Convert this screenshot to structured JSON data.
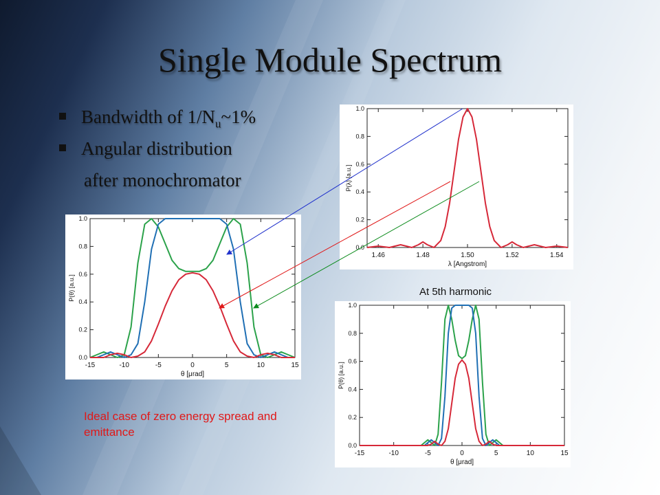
{
  "slide": {
    "title": "Single Module Spectrum",
    "bullets": [
      {
        "main": "Bandwidth of 1/N",
        "sub": "u",
        "tail": "~1%"
      },
      {
        "main": "Angular distribution"
      }
    ],
    "continuation": "after monochromator",
    "caption_harmonic": "At 5th harmonic",
    "note": "Ideal case of zero energy spread and emittance",
    "arrow_colors": {
      "blue": "#2233cc",
      "red": "#e01818",
      "green": "#0a8a1a"
    }
  },
  "chart_data": [
    {
      "id": "angular",
      "type": "line",
      "ylabel": "P(θ) [a.u.]",
      "xlabel": "θ [μrad]",
      "xlim": [
        -15,
        15
      ],
      "ylim": [
        0,
        1.0
      ],
      "xticks": [
        -15,
        -10,
        -5,
        0,
        5,
        10,
        15
      ],
      "yticks": [
        0.0,
        0.2,
        0.4,
        0.6,
        0.8,
        1.0
      ],
      "grid": false,
      "series": [
        {
          "color": "#2ba24a",
          "x": [
            -15,
            -14,
            -13,
            -12,
            -11,
            -10,
            -9,
            -8,
            -7,
            -6,
            -5,
            -4,
            -3,
            -2,
            -1,
            0,
            1,
            2,
            3,
            4,
            5,
            6,
            7,
            8,
            9,
            10,
            11,
            12,
            13,
            14,
            15
          ],
          "y": [
            0.0,
            0.02,
            0.04,
            0.02,
            0.0,
            0.02,
            0.22,
            0.68,
            0.96,
            1.0,
            0.94,
            0.82,
            0.7,
            0.64,
            0.62,
            0.62,
            0.62,
            0.64,
            0.7,
            0.82,
            0.94,
            1.0,
            0.96,
            0.68,
            0.22,
            0.02,
            0.0,
            0.02,
            0.04,
            0.02,
            0.0
          ]
        },
        {
          "color": "#1f6fb4",
          "x": [
            -15,
            -14,
            -13,
            -12,
            -11,
            -10,
            -9,
            -8,
            -7,
            -6,
            -5,
            -4,
            -3,
            -2,
            -1,
            0,
            1,
            2,
            3,
            4,
            5,
            6,
            7,
            8,
            9,
            10,
            11,
            12,
            13,
            14,
            15
          ],
          "y": [
            0.0,
            0.0,
            0.02,
            0.04,
            0.02,
            0.0,
            0.02,
            0.1,
            0.4,
            0.78,
            0.96,
            1.0,
            1.0,
            1.0,
            1.0,
            1.0,
            1.0,
            1.0,
            1.0,
            1.0,
            0.96,
            0.78,
            0.4,
            0.1,
            0.02,
            0.0,
            0.02,
            0.04,
            0.02,
            0.0,
            0.0
          ]
        },
        {
          "color": "#d62838",
          "x": [
            -15,
            -14,
            -13,
            -12,
            -11,
            -10,
            -9,
            -8,
            -7,
            -6,
            -5,
            -4,
            -3,
            -2,
            -1,
            0,
            1,
            2,
            3,
            4,
            5,
            6,
            7,
            8,
            9,
            10,
            11,
            12,
            13,
            14,
            15
          ],
          "y": [
            0.0,
            0.0,
            0.0,
            0.02,
            0.03,
            0.02,
            0.0,
            0.01,
            0.04,
            0.12,
            0.24,
            0.37,
            0.48,
            0.56,
            0.6,
            0.61,
            0.6,
            0.56,
            0.48,
            0.37,
            0.24,
            0.12,
            0.04,
            0.01,
            0.0,
            0.02,
            0.03,
            0.02,
            0.0,
            0.0,
            0.0
          ]
        }
      ]
    },
    {
      "id": "spectrum",
      "type": "line",
      "ylabel": "P(λ) [a.u.]",
      "xlabel": "λ [Angstrom]",
      "xlim": [
        1.455,
        1.545
      ],
      "ylim": [
        0,
        1.0
      ],
      "xticks": [
        1.46,
        1.48,
        1.5,
        1.52,
        1.54
      ],
      "yticks": [
        0.0,
        0.2,
        0.4,
        0.6,
        0.8,
        1.0
      ],
      "grid": false,
      "series": [
        {
          "color": "#d62838",
          "x": [
            1.455,
            1.46,
            1.465,
            1.47,
            1.475,
            1.478,
            1.48,
            1.482,
            1.485,
            1.488,
            1.49,
            1.492,
            1.494,
            1.496,
            1.498,
            1.5,
            1.502,
            1.504,
            1.506,
            1.508,
            1.51,
            1.512,
            1.515,
            1.518,
            1.52,
            1.522,
            1.525,
            1.53,
            1.535,
            1.54,
            1.545
          ],
          "y": [
            0.0,
            0.01,
            0.0,
            0.02,
            0.0,
            0.02,
            0.04,
            0.02,
            0.0,
            0.05,
            0.15,
            0.32,
            0.55,
            0.78,
            0.94,
            1.0,
            0.94,
            0.78,
            0.55,
            0.32,
            0.15,
            0.05,
            0.0,
            0.02,
            0.04,
            0.02,
            0.0,
            0.02,
            0.0,
            0.01,
            0.0
          ]
        }
      ]
    },
    {
      "id": "harmonic5",
      "type": "line",
      "ylabel": "P(θ) [a.u.]",
      "xlabel": "θ [μrad]",
      "xlim": [
        -15,
        15
      ],
      "ylim": [
        0,
        1.0
      ],
      "xticks": [
        -15,
        -10,
        -5,
        0,
        5,
        10,
        15
      ],
      "yticks": [
        0.0,
        0.2,
        0.4,
        0.6,
        0.8,
        1.0
      ],
      "grid": false,
      "series": [
        {
          "color": "#2ba24a",
          "x": [
            -15,
            -6,
            -5.5,
            -5,
            -4.5,
            -4,
            -3.5,
            -3,
            -2.5,
            -2,
            -1.5,
            -1,
            -0.5,
            0,
            0.5,
            1,
            1.5,
            2,
            2.5,
            3,
            3.5,
            4,
            4.5,
            5,
            5.5,
            6,
            15
          ],
          "y": [
            0.0,
            0.0,
            0.02,
            0.04,
            0.02,
            0.0,
            0.08,
            0.45,
            0.9,
            1.0,
            0.9,
            0.75,
            0.64,
            0.62,
            0.64,
            0.75,
            0.9,
            1.0,
            0.9,
            0.45,
            0.08,
            0.0,
            0.02,
            0.04,
            0.02,
            0.0,
            0.0
          ]
        },
        {
          "color": "#1f6fb4",
          "x": [
            -15,
            -5.5,
            -5,
            -4.5,
            -4,
            -3.5,
            -3,
            -2.5,
            -2,
            -1.5,
            -1,
            -0.5,
            0,
            0.5,
            1,
            1.5,
            2,
            2.5,
            3,
            3.5,
            4,
            4.5,
            5,
            5.5,
            15
          ],
          "y": [
            0.0,
            0.0,
            0.02,
            0.04,
            0.02,
            0.0,
            0.05,
            0.35,
            0.8,
            0.98,
            1.0,
            1.0,
            1.0,
            1.0,
            1.0,
            0.98,
            0.8,
            0.35,
            0.05,
            0.0,
            0.02,
            0.04,
            0.02,
            0.0,
            0.0
          ]
        },
        {
          "color": "#d62838",
          "x": [
            -15,
            -5,
            -4.5,
            -4,
            -3.5,
            -3,
            -2.5,
            -2,
            -1.5,
            -1,
            -0.5,
            0,
            0.5,
            1,
            1.5,
            2,
            2.5,
            3,
            3.5,
            4,
            4.5,
            5,
            15
          ],
          "y": [
            0.0,
            0.0,
            0.01,
            0.03,
            0.01,
            0.0,
            0.03,
            0.12,
            0.3,
            0.48,
            0.58,
            0.61,
            0.58,
            0.48,
            0.3,
            0.12,
            0.03,
            0.0,
            0.01,
            0.03,
            0.01,
            0.0,
            0.0
          ]
        }
      ]
    }
  ]
}
